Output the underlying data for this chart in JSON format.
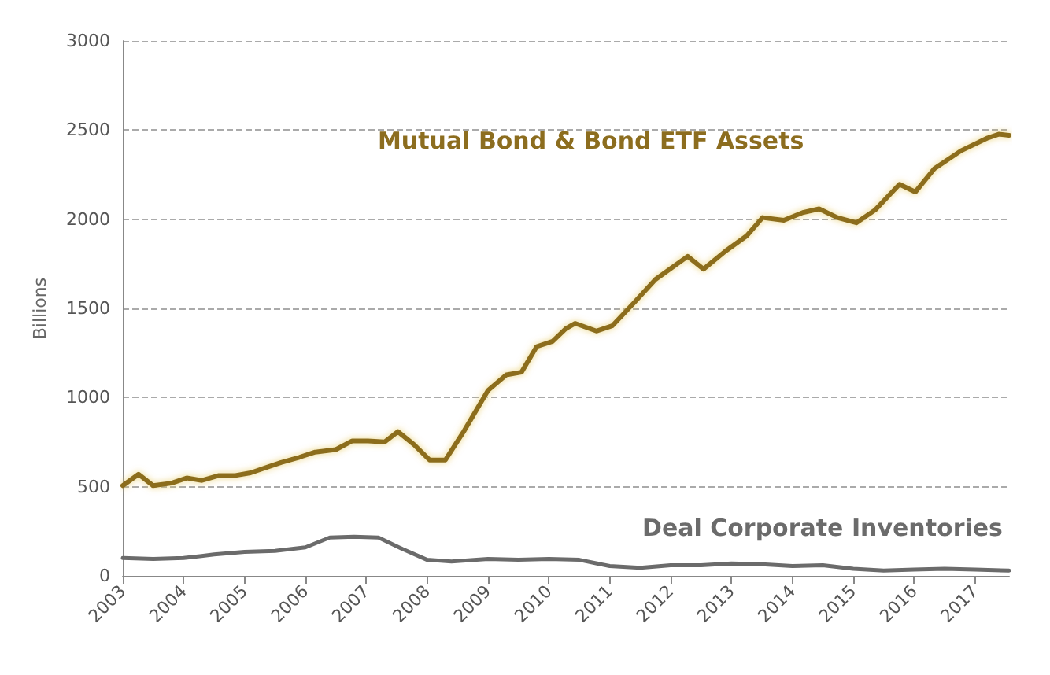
{
  "chart_data": {
    "type": "line",
    "ylabel": "Billions",
    "xlim": [
      2003,
      2017.56
    ],
    "xticks": [
      2003,
      2004,
      2005,
      2006,
      2007,
      2008,
      2009,
      2010,
      2011,
      2012,
      2013,
      2014,
      2015,
      2016,
      2017
    ],
    "ylim": [
      0,
      3000
    ],
    "yticks": [
      0,
      500,
      1000,
      1500,
      2000,
      2500,
      3000
    ],
    "grid": "y",
    "legend": false,
    "marker": "none",
    "line_style": "solid",
    "series": [
      {
        "name": "Mutual Bond & Bond ETF Assets",
        "color": "#8c6d1f",
        "x": [
          2003.0,
          2003.26,
          2003.5,
          2003.8,
          2004.05,
          2004.3,
          2004.58,
          2004.85,
          2005.1,
          2005.35,
          2005.6,
          2005.9,
          2006.16,
          2006.5,
          2006.77,
          2007.03,
          2007.3,
          2007.52,
          2007.78,
          2008.04,
          2008.3,
          2008.6,
          2009.0,
          2009.3,
          2009.55,
          2009.8,
          2010.06,
          2010.28,
          2010.43,
          2010.78,
          2011.04,
          2011.4,
          2011.75,
          2012.28,
          2012.54,
          2012.9,
          2013.25,
          2013.51,
          2013.86,
          2014.17,
          2014.44,
          2014.74,
          2015.05,
          2015.36,
          2015.76,
          2016.02,
          2016.33,
          2016.77,
          2017.21,
          2017.39,
          2017.56
        ],
        "values": [
          506,
          570,
          506,
          520,
          549,
          535,
          563,
          563,
          578,
          607,
          636,
          665,
          694,
          708,
          757,
          757,
          751,
          809,
          737,
          650,
          650,
          809,
          1040,
          1127,
          1142,
          1286,
          1315,
          1387,
          1416,
          1373,
          1402,
          1532,
          1662,
          1792,
          1720,
          1821,
          1907,
          2009,
          1994,
          2037,
          2058,
          2009,
          1980,
          2052,
          2196,
          2153,
          2283,
          2384,
          2456,
          2477,
          2471
        ]
      },
      {
        "name": "Deal Corporate Inventories",
        "color": "#6b6b6b",
        "x": [
          2003.0,
          2003.5,
          2004.0,
          2004.5,
          2005.0,
          2005.5,
          2006.0,
          2006.4,
          2006.8,
          2007.2,
          2007.6,
          2008.0,
          2008.4,
          2009.0,
          2009.5,
          2010.0,
          2010.5,
          2011.0,
          2011.5,
          2012.0,
          2012.5,
          2013.0,
          2013.5,
          2014.0,
          2014.5,
          2015.0,
          2015.5,
          2016.0,
          2016.5,
          2017.0,
          2017.56
        ],
        "values": [
          100,
          95,
          100,
          120,
          135,
          140,
          160,
          215,
          220,
          215,
          150,
          90,
          80,
          95,
          90,
          95,
          90,
          55,
          45,
          60,
          60,
          70,
          65,
          55,
          60,
          40,
          30,
          35,
          40,
          35,
          30
        ]
      }
    ]
  }
}
